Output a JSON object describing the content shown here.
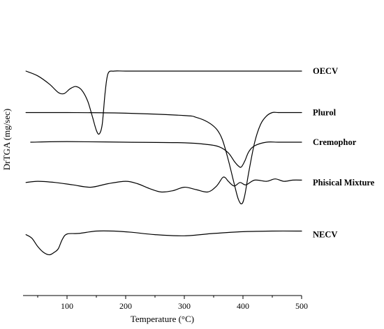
{
  "chart_data": {
    "type": "line",
    "title": "",
    "xlabel": "Temperature (°C)",
    "ylabel": "DrTGA (mg/sec)",
    "xlim": [
      25,
      500
    ],
    "xticks": [
      100,
      200,
      300,
      400,
      500
    ],
    "grid": false,
    "legend": "labels at right end of each curve",
    "series": [
      {
        "name": "OECV",
        "offset": 10,
        "x": [
          30,
          50,
          70,
          85,
          95,
          105,
          115,
          125,
          135,
          143,
          150,
          155,
          160,
          165,
          170,
          180,
          200,
          250,
          300,
          350,
          400,
          450,
          500
        ],
        "y": [
          0,
          -0.4,
          -1.1,
          -1.8,
          -1.9,
          -1.5,
          -1.3,
          -1.6,
          -2.5,
          -3.8,
          -5.0,
          -5.3,
          -4.5,
          -1.8,
          -0.2,
          0,
          0,
          0,
          0,
          0,
          0,
          0,
          0
        ]
      },
      {
        "name": "Plurol",
        "offset": 6.5,
        "x": [
          30,
          100,
          200,
          300,
          320,
          340,
          355,
          365,
          375,
          385,
          392,
          398,
          403,
          410,
          420,
          430,
          440,
          450,
          460,
          470,
          480,
          490,
          500
        ],
        "y": [
          0,
          0,
          -0.05,
          -0.25,
          -0.4,
          -0.8,
          -1.4,
          -2.3,
          -4.0,
          -6.0,
          -7.3,
          -7.7,
          -7.0,
          -5.0,
          -2.5,
          -1.0,
          -0.3,
          0,
          0,
          0,
          0,
          0,
          0
        ]
      },
      {
        "name": "Cremophor",
        "offset": 4.0,
        "x": [
          38,
          100,
          200,
          300,
          340,
          360,
          375,
          385,
          392,
          397,
          403,
          410,
          420,
          440,
          460,
          480,
          500
        ],
        "y": [
          0,
          0.05,
          0,
          -0.05,
          -0.2,
          -0.4,
          -0.9,
          -1.6,
          -2.0,
          -2.1,
          -1.6,
          -0.8,
          -0.3,
          0,
          0,
          0,
          0
        ]
      },
      {
        "name": "Phisical Mixture",
        "offset": 0.6,
        "x": [
          30,
          50,
          80,
          110,
          140,
          170,
          200,
          220,
          240,
          260,
          280,
          300,
          320,
          340,
          355,
          365,
          370,
          375,
          385,
          395,
          405,
          420,
          440,
          455,
          470,
          485,
          500
        ],
        "y": [
          0,
          0.1,
          0,
          -0.2,
          -0.4,
          -0.1,
          0.1,
          -0.1,
          -0.5,
          -0.8,
          -0.7,
          -0.4,
          -0.6,
          -0.8,
          -0.3,
          0.4,
          0.4,
          0.1,
          -0.3,
          0.0,
          -0.2,
          0.2,
          0.1,
          0.3,
          0.1,
          0.2,
          0.2
        ]
      },
      {
        "name": "NECV",
        "offset": -3.8,
        "x": [
          30,
          40,
          50,
          60,
          70,
          78,
          85,
          92,
          100,
          120,
          150,
          180,
          210,
          250,
          300,
          350,
          400,
          450,
          500
        ],
        "y": [
          0,
          -0.3,
          -1.0,
          -1.5,
          -1.7,
          -1.5,
          -1.2,
          -0.4,
          0.05,
          0.1,
          0.3,
          0.3,
          0.2,
          0.0,
          -0.1,
          0.1,
          0.25,
          0.3,
          0.3
        ]
      }
    ]
  }
}
